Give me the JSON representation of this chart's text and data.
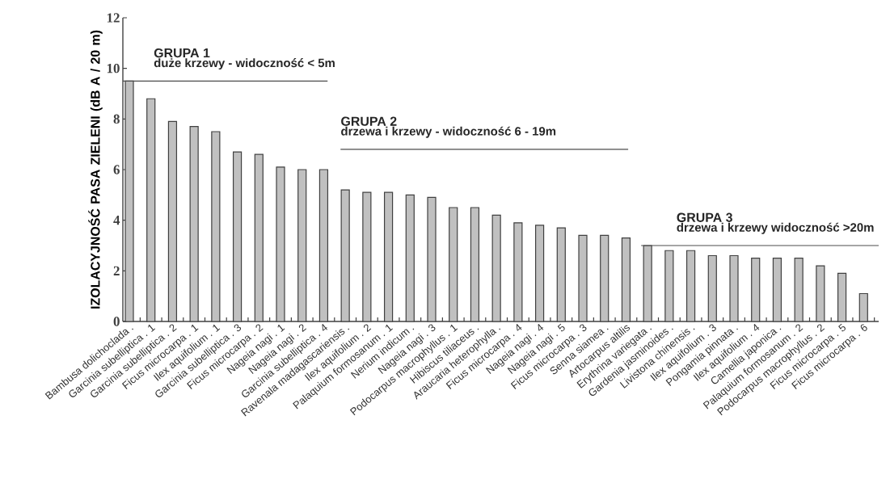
{
  "chart_data": {
    "type": "bar",
    "ylabel": "IZOLACYJNOŚĆ PASA ZIELENI (dB A / 20 m)",
    "categories": [
      "Bambusa dolichoclada .",
      "Garcinia subelliptica . 1",
      "Garcinia subelliptica . 2",
      "Ficus microcarpa . 1",
      "Ilex aquifolium . 1",
      "Garcinia subelliptica . 3",
      "Ficus microcarpa . 2",
      "Nageia nagi . 1",
      "Nageia nagi . 2",
      "Garcinia subelliptica . 4",
      "Ravenala madagascariensis .",
      "Ilex aquifolium . 2",
      "Palaquium formosanum . 1",
      "Nerium indicum .",
      "Nageia nagi . 3",
      "Podocarpus  macrophyllus . 1",
      "Hibiscus tiliaceus .",
      "Araucaria heterophylla .",
      "Ficus microcarpa . 4",
      "Nageia nagi . 4",
      "Nageia nagi . 5",
      "Ficus microcarpa . 3",
      "Senna siamea .",
      "Artocarpus altilis",
      "Erythrina variegata .",
      "Gardenia jasminoides .",
      "Livistona chinensis .",
      "Ilex aquifolium . 3",
      "Pongamia pinnata .",
      "Ilex aquifolium . 4",
      "Camellia japonica .",
      "Palaquium formosanum . 2",
      "Podocarpus  macrophyllus . 2",
      "Ficus microcarpa . 5",
      "Ficus microcarpa . 6"
    ],
    "values": [
      9.5,
      8.8,
      7.9,
      7.7,
      7.5,
      6.7,
      6.6,
      6.1,
      6.0,
      6.0,
      5.2,
      5.1,
      5.1,
      5.0,
      4.9,
      4.5,
      4.5,
      4.2,
      3.9,
      3.8,
      3.7,
      3.4,
      3.4,
      3.3,
      3.0,
      2.8,
      2.8,
      2.6,
      2.6,
      2.5,
      2.5,
      2.5,
      2.2,
      1.9,
      1.1
    ],
    "color": "#c0c0c0",
    "ylim": [
      0,
      12
    ],
    "yticks": [
      0,
      2,
      4,
      6,
      8,
      10,
      12
    ],
    "grid": false,
    "annotations": [
      "GRUPA 1",
      {
        "text": "duże krzewy - widoczność < 5m",
        "x": "Bambusa dolichoclada .",
        "y": 9.5
      },
      "GRUPA 2",
      "drzewa i krzewy - widoczność 6 - 19m",
      "GRUPA 3",
      {
        "text": "drzewa i krzewy widoczność >20m",
        "x": "Erythrina variegata .",
        "y": 3.0
      }
    ]
  }
}
